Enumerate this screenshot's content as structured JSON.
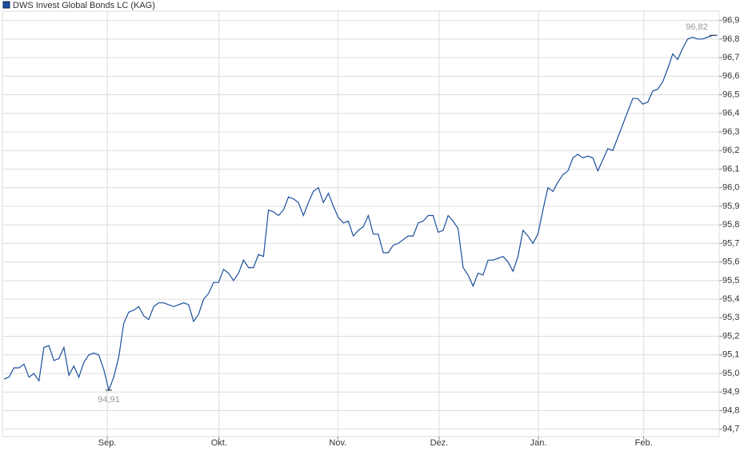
{
  "chart_data": {
    "type": "line",
    "title": "DWS Invest Global Bonds LC (KAG)",
    "color": "#1c4f9c",
    "values": [
      94.97,
      94.98,
      95.03,
      95.03,
      95.05,
      94.98,
      95.0,
      94.96,
      95.14,
      95.15,
      95.07,
      95.08,
      95.14,
      94.99,
      95.04,
      94.98,
      95.06,
      95.1,
      95.11,
      95.1,
      95.02,
      94.91,
      94.98,
      95.09,
      95.27,
      95.33,
      95.34,
      95.36,
      95.31,
      95.29,
      95.36,
      95.38,
      95.38,
      95.37,
      95.36,
      95.37,
      95.38,
      95.37,
      95.28,
      95.32,
      95.4,
      95.43,
      95.49,
      95.49,
      95.56,
      95.54,
      95.5,
      95.54,
      95.61,
      95.57,
      95.57,
      95.64,
      95.63,
      95.88,
      95.87,
      95.85,
      95.88,
      95.95,
      95.94,
      95.92,
      95.85,
      95.92,
      95.98,
      96.0,
      95.92,
      95.97,
      95.9,
      95.84,
      95.81,
      95.82,
      95.74,
      95.77,
      95.79,
      95.85,
      95.75,
      95.75,
      95.65,
      95.65,
      95.69,
      95.7,
      95.72,
      95.74,
      95.74,
      95.81,
      95.82,
      95.85,
      95.85,
      95.76,
      95.77,
      95.85,
      95.82,
      95.78,
      95.57,
      95.53,
      95.47,
      95.54,
      95.53,
      95.61,
      95.61,
      95.62,
      95.63,
      95.6,
      95.55,
      95.63,
      95.77,
      95.74,
      95.7,
      95.75,
      95.88,
      96.0,
      95.98,
      96.03,
      96.07,
      96.09,
      96.16,
      96.18,
      96.16,
      96.17,
      96.16,
      96.09,
      96.15,
      96.21,
      96.2,
      96.27,
      96.34,
      96.41,
      96.48,
      96.48,
      96.45,
      96.46,
      96.52,
      96.53,
      96.57,
      96.64,
      96.72,
      96.69,
      96.75,
      96.8,
      96.81,
      96.8,
      96.8,
      96.81,
      96.82,
      96.82
    ],
    "xlim": [
      0,
      143
    ],
    "xticks": [
      {
        "value": 20.7,
        "label": "Sep."
      },
      {
        "value": 43.1,
        "label": "Okt."
      },
      {
        "value": 66.9,
        "label": "Nov."
      },
      {
        "value": 87.2,
        "label": "Dez."
      },
      {
        "value": 107.1,
        "label": "Jan."
      },
      {
        "value": 128.2,
        "label": "Feb."
      }
    ],
    "ylim": [
      94.66,
      96.95
    ],
    "yticks": [
      {
        "value": 94.7,
        "label": "94,7"
      },
      {
        "value": 94.8,
        "label": "94,8"
      },
      {
        "value": 94.9,
        "label": "94,9"
      },
      {
        "value": 95.0,
        "label": "95,0"
      },
      {
        "value": 95.1,
        "label": "95,1"
      },
      {
        "value": 95.2,
        "label": "95,2"
      },
      {
        "value": 95.3,
        "label": "95,3"
      },
      {
        "value": 95.4,
        "label": "95,4"
      },
      {
        "value": 95.5,
        "label": "95,5"
      },
      {
        "value": 95.6,
        "label": "95,6"
      },
      {
        "value": 95.7,
        "label": "95,7"
      },
      {
        "value": 95.8,
        "label": "95,8"
      },
      {
        "value": 95.9,
        "label": "95,9"
      },
      {
        "value": 96.0,
        "label": "96,0"
      },
      {
        "value": 96.1,
        "label": "96,1"
      },
      {
        "value": 96.2,
        "label": "96,2"
      },
      {
        "value": 96.3,
        "label": "96,3"
      },
      {
        "value": 96.4,
        "label": "96,4"
      },
      {
        "value": 96.5,
        "label": "96,5"
      },
      {
        "value": 96.6,
        "label": "96,6"
      },
      {
        "value": 96.7,
        "label": "96,7"
      },
      {
        "value": 96.8,
        "label": "96,8"
      },
      {
        "value": 96.9,
        "label": "96,9"
      }
    ],
    "grid": true,
    "annotations": [
      {
        "text": "94,91",
        "value": 94.91,
        "position": "below"
      },
      {
        "text": "96,82",
        "value": 96.82,
        "position": "above"
      }
    ]
  }
}
